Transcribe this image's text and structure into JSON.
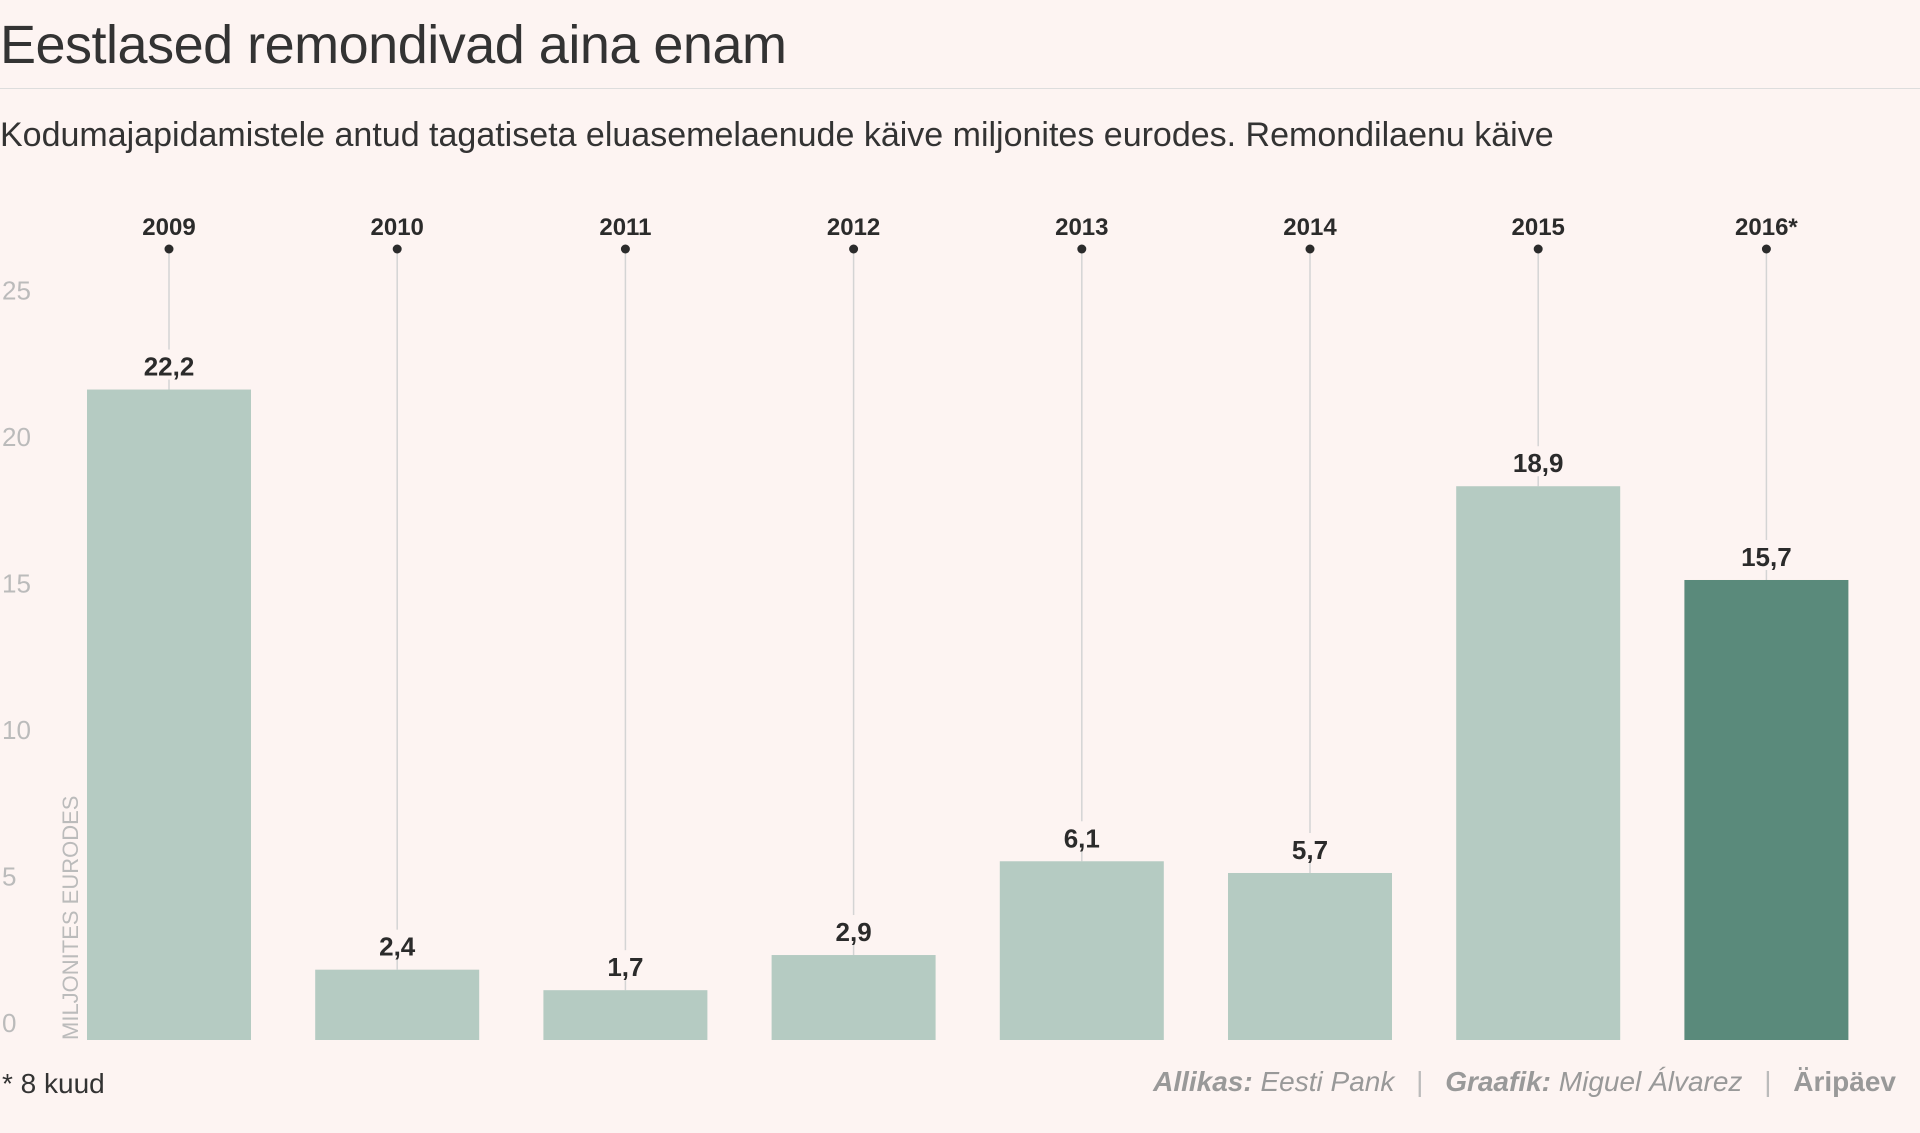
{
  "header": {
    "title": "Eestlased remondivad aina enam",
    "subtitle": "Kodumajapidamistele antud tagatiseta eluasemelaenude käive miljonites eurodes. Remondilaenu käive"
  },
  "chart_data": {
    "type": "bar",
    "title": "Eestlased remondivad aina enam",
    "categories": [
      "2009",
      "2010",
      "2011",
      "2012",
      "2013",
      "2014",
      "2015",
      "2016*"
    ],
    "values": [
      22.2,
      2.4,
      1.7,
      2.9,
      6.1,
      5.7,
      18.9,
      15.7
    ],
    "value_labels": [
      "22,2",
      "2,4",
      "1,7",
      "2,9",
      "6,1",
      "5,7",
      "18,9",
      "15,7"
    ],
    "highlight_index": 7,
    "ylabel": "MILJONITES EURODES",
    "ylim": [
      0,
      25
    ],
    "yticks": [
      0,
      5,
      10,
      15,
      20,
      25
    ],
    "grid": false,
    "colors": {
      "bar": "#b5cbc2",
      "highlight": "#5a8a7b",
      "background": "#fdf4f2"
    }
  },
  "footer": {
    "note": "* 8 kuud",
    "source_label": "Allikas:",
    "source": "Eesti Pank",
    "author_label": "Graafik:",
    "author": "Miguel Álvarez",
    "separator": "|",
    "brand": "Äripäev"
  }
}
